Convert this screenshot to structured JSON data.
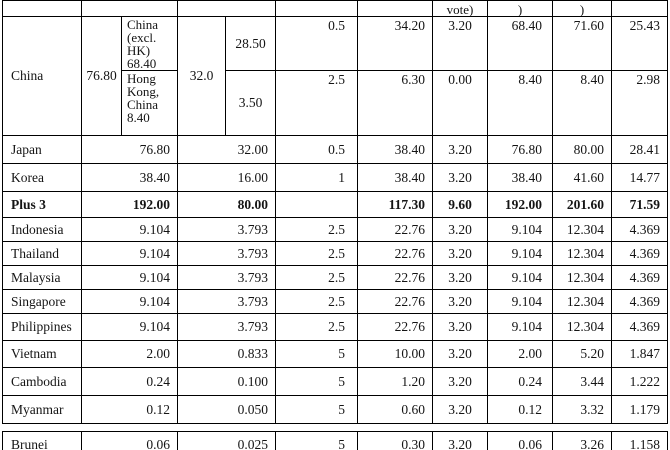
{
  "colors": {
    "border": "#000000",
    "text": "#141414",
    "background": "#ffffff"
  },
  "table": {
    "header": {
      "c1": "",
      "c23": "",
      "c45": "",
      "c6": "",
      "c7": "",
      "c8": "vote)",
      "c9": ")",
      "c10": ")",
      "c11": ""
    },
    "china": {
      "country": "China",
      "total": "76.80",
      "votes_total": "32.0",
      "sub": [
        {
          "label": "China (excl. HK) 68.40",
          "c5": "28.50",
          "c6": "0.5",
          "c7": "34.20",
          "c8": "3.20",
          "c9": "68.40",
          "c10": "71.60",
          "c11": "25.43"
        },
        {
          "label": "Hong Kong, China 8.40",
          "c5": "3.50",
          "c6": "2.5",
          "c7": "6.30",
          "c8": "0.00",
          "c9": "8.40",
          "c10": "8.40",
          "c11": "2.98"
        }
      ]
    },
    "rows": [
      {
        "country": "Japan",
        "c23": "76.80",
        "c45": "32.00",
        "c6": "0.5",
        "c7": "38.40",
        "c8": "3.20",
        "c9": "76.80",
        "c10": "80.00",
        "c11": "28.41",
        "bold": false
      },
      {
        "country": "Korea",
        "c23": "38.40",
        "c45": "16.00",
        "c6": "1",
        "c7": "38.40",
        "c8": "3.20",
        "c9": "38.40",
        "c10": "41.60",
        "c11": "14.77",
        "bold": false
      },
      {
        "country": "Plus 3",
        "c23": "192.00",
        "c45": "80.00",
        "c6": "",
        "c7": "117.30",
        "c8": "9.60",
        "c9": "192.00",
        "c10": "201.60",
        "c11": "71.59",
        "bold": true
      },
      {
        "country": "Indonesia",
        "c23": "9.104",
        "c45": "3.793",
        "c6": "2.5",
        "c7": "22.76",
        "c8": "3.20",
        "c9": "9.104",
        "c10": "12.304",
        "c11": "4.369",
        "bold": false
      },
      {
        "country": "Thailand",
        "c23": "9.104",
        "c45": "3.793",
        "c6": "2.5",
        "c7": "22.76",
        "c8": "3.20",
        "c9": "9.104",
        "c10": "12.304",
        "c11": "4.369",
        "bold": false
      },
      {
        "country": "Malaysia",
        "c23": "9.104",
        "c45": "3.793",
        "c6": "2.5",
        "c7": "22.76",
        "c8": "3.20",
        "c9": "9.104",
        "c10": "12.304",
        "c11": "4.369",
        "bold": false
      },
      {
        "country": "Singapore",
        "c23": "9.104",
        "c45": "3.793",
        "c6": "2.5",
        "c7": "22.76",
        "c8": "3.20",
        "c9": "9.104",
        "c10": "12.304",
        "c11": "4.369",
        "bold": false
      },
      {
        "country": "Philippines",
        "c23": "9.104",
        "c45": "3.793",
        "c6": "2.5",
        "c7": "22.76",
        "c8": "3.20",
        "c9": "9.104",
        "c10": "12.304",
        "c11": "4.369",
        "bold": false
      },
      {
        "country": "Vietnam",
        "c23": "2.00",
        "c45": "0.833",
        "c6": "5",
        "c7": "10.00",
        "c8": "3.20",
        "c9": "2.00",
        "c10": "5.20",
        "c11": "1.847",
        "bold": false
      },
      {
        "country": "Cambodia",
        "c23": "0.24",
        "c45": "0.100",
        "c6": "5",
        "c7": "1.20",
        "c8": "3.20",
        "c9": "0.24",
        "c10": "3.44",
        "c11": "1.222",
        "bold": false
      },
      {
        "country": "Myanmar",
        "c23": "0.12",
        "c45": "0.050",
        "c6": "5",
        "c7": "0.60",
        "c8": "3.20",
        "c9": "0.12",
        "c10": "3.32",
        "c11": "1.179",
        "bold": false
      }
    ],
    "brunei": {
      "country": "Brunei",
      "c23": "0.06",
      "c45": "0.025",
      "c6": "5",
      "c7": "0.30",
      "c8": "3.20",
      "c9": "0.06",
      "c10": "3.26",
      "c11": "1.158",
      "bold": false
    }
  }
}
